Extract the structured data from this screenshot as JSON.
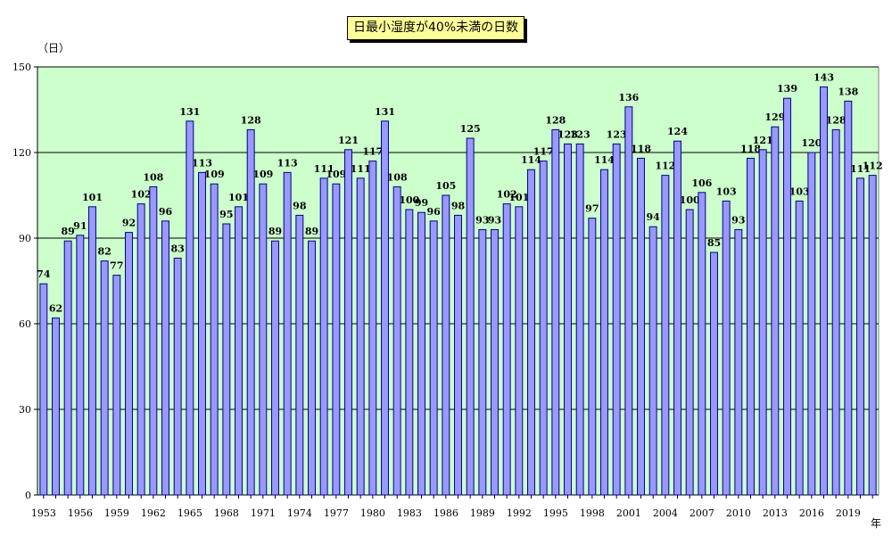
{
  "chart_data": {
    "type": "bar",
    "title": "日最小湿度が40%未満の日数",
    "ylabel": "（日）",
    "xlabel": "年",
    "ylim": [
      0,
      150
    ],
    "yticks": [
      0,
      30,
      60,
      90,
      120,
      150
    ],
    "grid": true,
    "legend": "none",
    "x": [
      1953,
      1954,
      1955,
      1956,
      1957,
      1958,
      1959,
      1960,
      1961,
      1962,
      1963,
      1964,
      1965,
      1966,
      1967,
      1968,
      1969,
      1970,
      1971,
      1972,
      1973,
      1974,
      1975,
      1976,
      1977,
      1978,
      1979,
      1980,
      1981,
      1982,
      1983,
      1984,
      1985,
      1986,
      1987,
      1988,
      1989,
      1990,
      1991,
      1992,
      1993,
      1994,
      1995,
      1996,
      1997,
      1998,
      1999,
      2000,
      2001,
      2002,
      2003,
      2004,
      2005,
      2006,
      2007,
      2008,
      2009,
      2010,
      2011,
      2012,
      2013,
      2014,
      2015,
      2016,
      2017,
      2018,
      2019,
      2020,
      2021
    ],
    "values": [
      74,
      62,
      89,
      91,
      101,
      82,
      77,
      92,
      102,
      108,
      96,
      83,
      131,
      113,
      109,
      95,
      101,
      128,
      109,
      89,
      113,
      98,
      89,
      111,
      109,
      121,
      111,
      117,
      131,
      108,
      100,
      99,
      96,
      105,
      98,
      125,
      93,
      93,
      102,
      101,
      114,
      117,
      128,
      123,
      123,
      97,
      114,
      123,
      136,
      118,
      94,
      112,
      124,
      100,
      106,
      85,
      103,
      93,
      118,
      121,
      129,
      139,
      103,
      120,
      143,
      128,
      138,
      111,
      112
    ],
    "x_tick_labels": [
      "1953",
      "1956",
      "1959",
      "1962",
      "1965",
      "1968",
      "1971",
      "1974",
      "1977",
      "1980",
      "1983",
      "1986",
      "1989",
      "1992",
      "1995",
      "1998",
      "2001",
      "2004",
      "2007",
      "2010",
      "2013",
      "2016",
      "2019"
    ],
    "colors": {
      "plot_background": "#ccffcc",
      "bar_fill": "#9999ff",
      "bar_stroke": "#000080",
      "title_background": "#ffff99"
    }
  }
}
